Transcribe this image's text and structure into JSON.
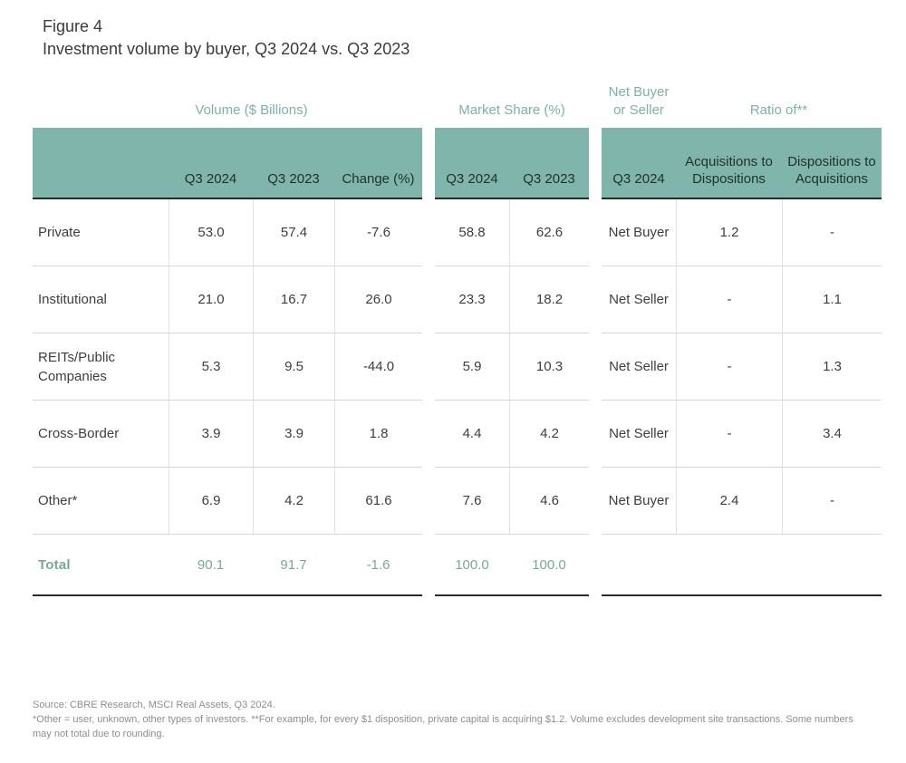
{
  "figure": {
    "label": "Figure 4",
    "title": "Investment volume by buyer, Q3 2024 vs. Q3 2023"
  },
  "colors": {
    "band_green": "#7fb5aa",
    "group_label_green": "#7db1a5",
    "total_green": "#74a99c",
    "band_header_text": "#1f312b",
    "body_text": "#3e3e3e",
    "row_separator": "#d7d7d7",
    "dark_rule": "#2b2b2b",
    "footnote_gray": "#8e8e8e"
  },
  "sections": {
    "volume": {
      "group_label": "Volume ($ Billions)",
      "columns": [
        "Q3 2024",
        "Q3 2023",
        "Change (%)"
      ]
    },
    "market_share": {
      "group_label": "Market Share (%)",
      "columns": [
        "Q3 2024",
        "Q3 2023"
      ]
    },
    "net_position": {
      "group_label_line1": "Net Buyer",
      "group_label_line2": "or Seller",
      "ratio_label": "Ratio of**",
      "columns": [
        "Q3 2024",
        "Acquisitions to Dispositions",
        "Dispositions to Acquisitions"
      ]
    }
  },
  "rows": [
    {
      "label": "Private",
      "volume_q3_2024": "53.0",
      "volume_q3_2023": "57.4",
      "volume_change": "-7.6",
      "share_q3_2024": "58.8",
      "share_q3_2023": "62.6",
      "net_position": "Net Buyer",
      "acq_to_disp": "1.2",
      "disp_to_acq": "-"
    },
    {
      "label": "Institutional",
      "volume_q3_2024": "21.0",
      "volume_q3_2023": "16.7",
      "volume_change": "26.0",
      "share_q3_2024": "23.3",
      "share_q3_2023": "18.2",
      "net_position": "Net Seller",
      "acq_to_disp": "-",
      "disp_to_acq": "1.1"
    },
    {
      "label": "REITs/Public Companies",
      "volume_q3_2024": "5.3",
      "volume_q3_2023": "9.5",
      "volume_change": "-44.0",
      "share_q3_2024": "5.9",
      "share_q3_2023": "10.3",
      "net_position": "Net Seller",
      "acq_to_disp": "-",
      "disp_to_acq": "1.3"
    },
    {
      "label": "Cross-Border",
      "volume_q3_2024": "3.9",
      "volume_q3_2023": "3.9",
      "volume_change": "1.8",
      "share_q3_2024": "4.4",
      "share_q3_2023": "4.2",
      "net_position": "Net Seller",
      "acq_to_disp": "-",
      "disp_to_acq": "3.4"
    },
    {
      "label": "Other*",
      "volume_q3_2024": "6.9",
      "volume_q3_2023": "4.2",
      "volume_change": "61.6",
      "share_q3_2024": "7.6",
      "share_q3_2023": "4.6",
      "net_position": "Net Buyer",
      "acq_to_disp": "2.4",
      "disp_to_acq": "-"
    }
  ],
  "total_row": {
    "label": "Total",
    "volume_q3_2024": "90.1",
    "volume_q3_2023": "91.7",
    "volume_change": "-1.6",
    "share_q3_2024": "100.0",
    "share_q3_2023": "100.0"
  },
  "footnotes": {
    "source": "Source: CBRE Research, MSCI Real Assets, Q3 2024.",
    "notes": "*Other = user, unknown, other types of investors. **For example, for every $1 disposition, private capital is acquiring $1.2. Volume excludes development site transactions. Some numbers may not total due to rounding."
  },
  "chart_data": {
    "type": "table",
    "title": "Figure 4 — Investment volume by buyer, Q3 2024 vs. Q3 2023",
    "column_groups": [
      {
        "label": "Volume ($ Billions)",
        "columns": [
          "Q3 2024",
          "Q3 2023",
          "Change (%)"
        ]
      },
      {
        "label": "Market Share (%)",
        "columns": [
          "Q3 2024",
          "Q3 2023"
        ]
      },
      {
        "label": "Net Buyer or Seller",
        "columns": [
          "Q3 2024"
        ]
      },
      {
        "label": "Ratio of**",
        "columns": [
          "Acquisitions to Dispositions",
          "Dispositions to Acquisitions"
        ]
      }
    ],
    "rows": [
      {
        "buyer": "Private",
        "volume_q3_2024": 53.0,
        "volume_q3_2023": 57.4,
        "change_pct": -7.6,
        "share_q3_2024": 58.8,
        "share_q3_2023": 62.6,
        "net_position_q3_2024": "Net Buyer",
        "acquisitions_to_dispositions": 1.2,
        "dispositions_to_acquisitions": null
      },
      {
        "buyer": "Institutional",
        "volume_q3_2024": 21.0,
        "volume_q3_2023": 16.7,
        "change_pct": 26.0,
        "share_q3_2024": 23.3,
        "share_q3_2023": 18.2,
        "net_position_q3_2024": "Net Seller",
        "acquisitions_to_dispositions": null,
        "dispositions_to_acquisitions": 1.1
      },
      {
        "buyer": "REITs/Public Companies",
        "volume_q3_2024": 5.3,
        "volume_q3_2023": 9.5,
        "change_pct": -44.0,
        "share_q3_2024": 5.9,
        "share_q3_2023": 10.3,
        "net_position_q3_2024": "Net Seller",
        "acquisitions_to_dispositions": null,
        "dispositions_to_acquisitions": 1.3
      },
      {
        "buyer": "Cross-Border",
        "volume_q3_2024": 3.9,
        "volume_q3_2023": 3.9,
        "change_pct": 1.8,
        "share_q3_2024": 4.4,
        "share_q3_2023": 4.2,
        "net_position_q3_2024": "Net Seller",
        "acquisitions_to_dispositions": null,
        "dispositions_to_acquisitions": 3.4
      },
      {
        "buyer": "Other*",
        "volume_q3_2024": 6.9,
        "volume_q3_2023": 4.2,
        "change_pct": 61.6,
        "share_q3_2024": 7.6,
        "share_q3_2023": 4.6,
        "net_position_q3_2024": "Net Buyer",
        "acquisitions_to_dispositions": 2.4,
        "dispositions_to_acquisitions": null
      }
    ],
    "total": {
      "buyer": "Total",
      "volume_q3_2024": 90.1,
      "volume_q3_2023": 91.7,
      "change_pct": -1.6,
      "share_q3_2024": 100.0,
      "share_q3_2023": 100.0
    }
  }
}
